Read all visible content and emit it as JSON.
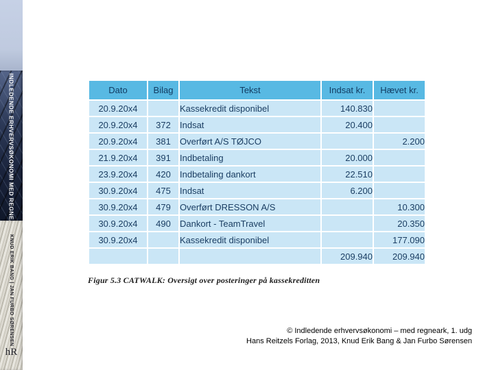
{
  "spine": {
    "title": "INDLEDENDE ERHVERVSØKONOMI MED REGNEARK",
    "authors": "KNUD ERIK BANG | JAN FURBO SØRENSEN",
    "publisher_logo": "hR"
  },
  "table": {
    "columns": [
      "Dato",
      "Bilag",
      "Tekst",
      "Indsat kr.",
      "Hævet kr."
    ],
    "rows": [
      [
        "20.9.20x4",
        "",
        "Kassekredit disponibel",
        "140.830",
        ""
      ],
      [
        "20.9.20x4",
        "372",
        "Indsat",
        "20.400",
        ""
      ],
      [
        "20.9.20x4",
        "381",
        "Overført A/S TØJCO",
        "",
        "2.200"
      ],
      [
        "21.9.20x4",
        "391",
        "Indbetaling",
        "20.000",
        ""
      ],
      [
        "23.9.20x4",
        "420",
        "Indbetaling dankort",
        "22.510",
        ""
      ],
      [
        "30.9.20x4",
        "475",
        "Indsat",
        "6.200",
        ""
      ],
      [
        "30.9.20x4",
        "479",
        "Overført DRESSON A/S",
        "",
        "10.300"
      ],
      [
        "30.9.20x4",
        "490",
        "Dankort - TeamTravel",
        "",
        "20.350"
      ],
      [
        "30.9.20x4",
        "",
        "Kassekredit disponibel",
        "",
        "177.090"
      ],
      [
        "",
        "",
        "",
        "209.940",
        "209.940"
      ]
    ]
  },
  "slide": {
    "caption": "Figur 5.3 CATWALK: Oversigt over posteringer på kassekreditten",
    "credit_line1": "© Indledende erhvervsøkonomi – med regneark, 1. udg",
    "credit_line2": "Hans Reitzels Forlag, 2013, Knud Erik Bang & Jan Furbo Sørensen"
  },
  "colors": {
    "table_header_bg": "#58b9e3",
    "table_row_bg": "#cae6f6",
    "table_text": "#1b3e63",
    "spine_top_bg": "#c6d1e6",
    "spine_photo_bg": "#1d2740"
  }
}
